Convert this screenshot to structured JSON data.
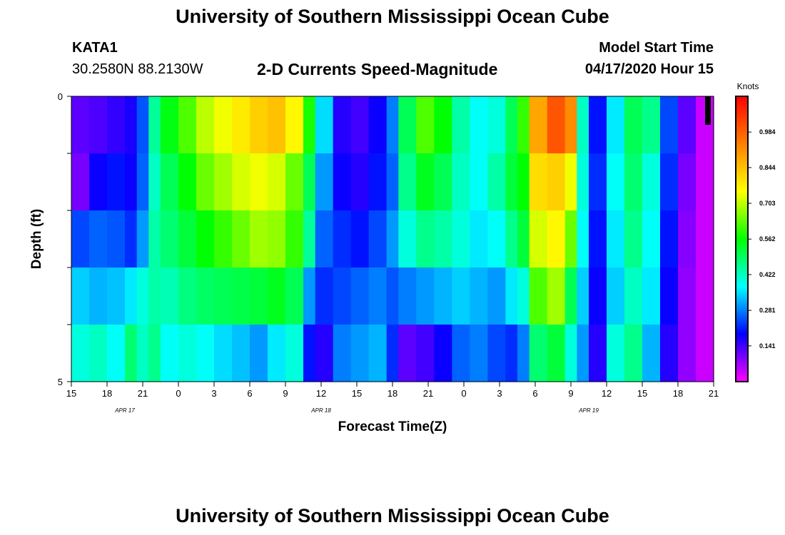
{
  "header": {
    "title": "University of Southern Mississippi Ocean Cube",
    "station_id": "KATA1",
    "coordinates": "30.2580N 88.2130W",
    "subtitle": "2-D Currents Speed-Magnitude",
    "model_start_label": "Model Start Time",
    "model_start_value": "04/17/2020 Hour 15"
  },
  "footer": {
    "title": "University of Southern Mississippi Ocean Cube"
  },
  "chart_data": {
    "type": "heatmap",
    "xlabel": "Forecast Time(Z)",
    "ylabel": "Depth (ft)",
    "ylim": [
      0,
      5
    ],
    "xlim_hours": [
      0,
      54
    ],
    "y_tick_labels": [
      "0",
      "5"
    ],
    "x_tick_labels": [
      "15",
      "18",
      "21",
      "0",
      "3",
      "6",
      "9",
      "12",
      "15",
      "18",
      "21",
      "0",
      "3",
      "6",
      "9",
      "12",
      "15",
      "18",
      "21"
    ],
    "date_labels": [
      {
        "text": "APR 17",
        "hour": 4.5
      },
      {
        "text": "APR 18",
        "hour": 21
      },
      {
        "text": "APR 19",
        "hour": 43.5
      }
    ],
    "colorbar": {
      "label": "Knots",
      "ticks": [
        "0.984",
        "0.844",
        "0.703",
        "0.562",
        "0.422",
        "0.281",
        "0.141"
      ],
      "min": 0,
      "max": 1.125
    },
    "depth_bins": 5,
    "columns": [
      {
        "h": 0,
        "v": [
          0.12,
          0.1,
          0.24,
          0.34,
          0.4
        ]
      },
      {
        "h": 1.5,
        "v": [
          0.13,
          0.18,
          0.26,
          0.32,
          0.42
        ]
      },
      {
        "h": 3,
        "v": [
          0.15,
          0.2,
          0.25,
          0.33,
          0.38
        ]
      },
      {
        "h": 4.5,
        "v": [
          0.17,
          0.18,
          0.22,
          0.36,
          0.48
        ]
      },
      {
        "h": 5.5,
        "v": [
          0.25,
          0.26,
          0.3,
          0.4,
          0.42
        ]
      },
      {
        "h": 6.5,
        "v": [
          0.45,
          0.42,
          0.44,
          0.44,
          0.46
        ]
      },
      {
        "h": 7.5,
        "v": [
          0.55,
          0.5,
          0.48,
          0.43,
          0.38
        ]
      },
      {
        "h": 9,
        "v": [
          0.62,
          0.56,
          0.52,
          0.47,
          0.4
        ]
      },
      {
        "h": 10.5,
        "v": [
          0.7,
          0.64,
          0.56,
          0.49,
          0.38
        ]
      },
      {
        "h": 12,
        "v": [
          0.74,
          0.68,
          0.6,
          0.5,
          0.35
        ]
      },
      {
        "h": 13.5,
        "v": [
          0.78,
          0.72,
          0.64,
          0.51,
          0.33
        ]
      },
      {
        "h": 15,
        "v": [
          0.82,
          0.74,
          0.68,
          0.52,
          0.3
        ]
      },
      {
        "h": 16.5,
        "v": [
          0.84,
          0.72,
          0.67,
          0.54,
          0.36
        ]
      },
      {
        "h": 18,
        "v": [
          0.76,
          0.64,
          0.6,
          0.5,
          0.4
        ]
      },
      {
        "h": 19.5,
        "v": [
          0.58,
          0.5,
          0.45,
          0.3,
          0.2
        ]
      },
      {
        "h": 20.5,
        "v": [
          0.35,
          0.3,
          0.26,
          0.22,
          0.16
        ]
      },
      {
        "h": 22,
        "v": [
          0.16,
          0.18,
          0.22,
          0.24,
          0.28
        ]
      },
      {
        "h": 23.5,
        "v": [
          0.14,
          0.16,
          0.2,
          0.26,
          0.3
        ]
      },
      {
        "h": 25,
        "v": [
          0.18,
          0.2,
          0.24,
          0.28,
          0.32
        ]
      },
      {
        "h": 26.5,
        "v": [
          0.28,
          0.26,
          0.3,
          0.25,
          0.22
        ]
      },
      {
        "h": 27.5,
        "v": [
          0.5,
          0.46,
          0.4,
          0.28,
          0.12
        ]
      },
      {
        "h": 29,
        "v": [
          0.62,
          0.54,
          0.46,
          0.3,
          0.14
        ]
      },
      {
        "h": 30.5,
        "v": [
          0.56,
          0.5,
          0.44,
          0.32,
          0.18
        ]
      },
      {
        "h": 32,
        "v": [
          0.44,
          0.42,
          0.4,
          0.34,
          0.26
        ]
      },
      {
        "h": 33.5,
        "v": [
          0.38,
          0.38,
          0.36,
          0.32,
          0.28
        ]
      },
      {
        "h": 35,
        "v": [
          0.4,
          0.44,
          0.38,
          0.3,
          0.24
        ]
      },
      {
        "h": 36.5,
        "v": [
          0.5,
          0.52,
          0.46,
          0.36,
          0.22
        ]
      },
      {
        "h": 37.5,
        "v": [
          0.6,
          0.56,
          0.52,
          0.4,
          0.28
        ]
      },
      {
        "h": 38.5,
        "v": [
          0.88,
          0.8,
          0.72,
          0.62,
          0.48
        ]
      },
      {
        "h": 40,
        "v": [
          1.0,
          0.82,
          0.76,
          0.68,
          0.52
        ]
      },
      {
        "h": 41.5,
        "v": [
          0.92,
          0.74,
          0.64,
          0.5,
          0.4
        ]
      },
      {
        "h": 42.5,
        "v": [
          0.42,
          0.4,
          0.38,
          0.34,
          0.3
        ]
      },
      {
        "h": 43.5,
        "v": [
          0.2,
          0.22,
          0.2,
          0.18,
          0.16
        ]
      },
      {
        "h": 45,
        "v": [
          0.36,
          0.38,
          0.36,
          0.34,
          0.4
        ]
      },
      {
        "h": 46.5,
        "v": [
          0.5,
          0.48,
          0.46,
          0.42,
          0.46
        ]
      },
      {
        "h": 48,
        "v": [
          0.46,
          0.4,
          0.38,
          0.36,
          0.32
        ]
      },
      {
        "h": 49.5,
        "v": [
          0.24,
          0.22,
          0.2,
          0.18,
          0.16
        ]
      },
      {
        "h": 51,
        "v": [
          0.12,
          0.1,
          0.09,
          0.08,
          0.08
        ]
      },
      {
        "h": 52.5,
        "v": [
          0.04,
          0.04,
          0.04,
          0.04,
          0.04
        ]
      }
    ]
  },
  "colors": {
    "scale": [
      "#ff00ff",
      "#0000ff",
      "#00ffff",
      "#00ff00",
      "#ffff00",
      "#ff8000",
      "#ff0000"
    ],
    "axis": "#000000"
  }
}
